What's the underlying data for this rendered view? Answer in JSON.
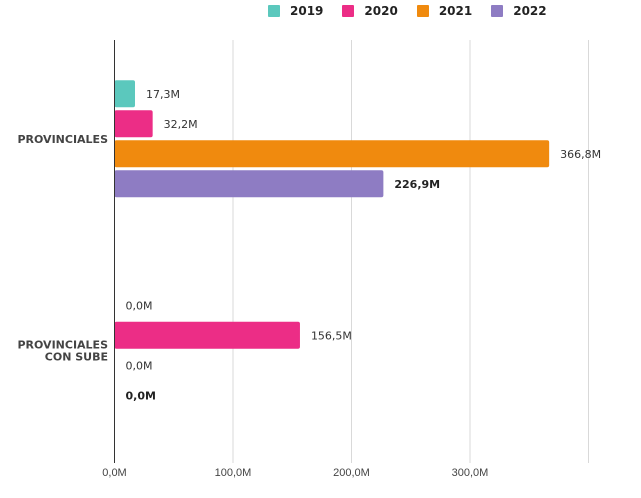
{
  "chart_data": {
    "type": "bar",
    "orientation": "horizontal",
    "title": "",
    "xlabel": "",
    "ylabel": "",
    "categories": [
      [
        "PROVINCIALES"
      ],
      [
        "PROVINCIALES",
        "CON SUBE"
      ]
    ],
    "series": [
      {
        "name": "2019",
        "color": "#5bc8bd",
        "values": [
          17.3,
          0.0
        ],
        "labels": [
          "17,3M",
          "0,0M"
        ],
        "bold": false
      },
      {
        "name": "2020",
        "color": "#ec2d86",
        "values": [
          32.2,
          156.5
        ],
        "labels": [
          "32,2M",
          "156,5M"
        ],
        "bold": false
      },
      {
        "name": "2021",
        "color": "#f08a0e",
        "values": [
          366.8,
          0.0
        ],
        "labels": [
          "366,8M",
          "0,0M"
        ],
        "bold": false
      },
      {
        "name": "2022",
        "color": "#8e7cc3",
        "values": [
          226.9,
          0.0
        ],
        "labels": [
          "226,9M",
          "0,0M"
        ],
        "bold": true
      }
    ],
    "xlim": [
      0,
      400
    ],
    "x_ticks": [
      0,
      100,
      200,
      300,
      400
    ],
    "x_tick_labels": [
      "0,0M",
      "100,0M",
      "200,0M",
      "300,0M",
      ""
    ],
    "grid": true,
    "legend_position": "top-right"
  }
}
